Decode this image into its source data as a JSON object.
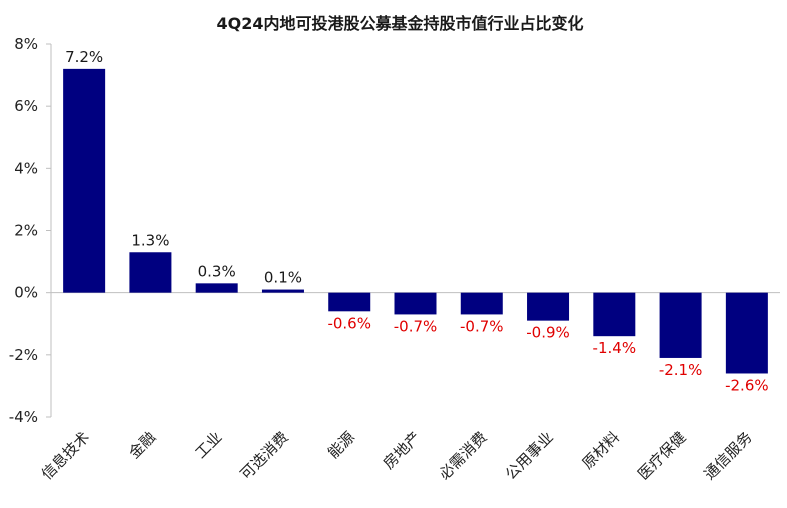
{
  "chart_data": {
    "type": "bar",
    "title": "4Q24内地可投港股公募基金持股市值行业占比变化",
    "xlabel": "",
    "ylabel": "",
    "categories": [
      "信息技术",
      "金融",
      "工业",
      "可选消费",
      "能源",
      "房地产",
      "必需消费",
      "公用事业",
      "原材料",
      "医疗保健",
      "通信服务"
    ],
    "values": [
      7.2,
      1.3,
      0.3,
      0.1,
      -0.6,
      -0.7,
      -0.7,
      -0.9,
      -1.4,
      -2.1,
      -2.6
    ],
    "data_labels": [
      "7.2%",
      "1.3%",
      "0.3%",
      "0.1%",
      "-0.6%",
      "-0.7%",
      "-0.7%",
      "-0.9%",
      "-1.4%",
      "-2.1%",
      "-2.6%"
    ],
    "ylim": [
      -4,
      8
    ],
    "yticks": [
      8,
      6,
      4,
      2,
      0,
      -2,
      -4
    ],
    "ytick_labels": [
      "8%",
      "6%",
      "4%",
      "2%",
      "0%",
      "-2%",
      "-4%"
    ],
    "grid": false,
    "colors": {
      "bar": "#000080",
      "positive_label": "#1a1a1a",
      "negative_label": "#e00000",
      "axis": "#bfbfbf"
    }
  }
}
